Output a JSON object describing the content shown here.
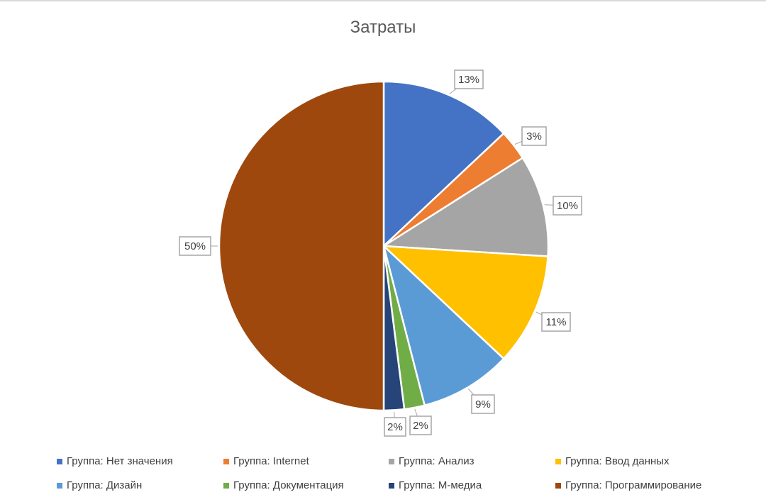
{
  "chart_data": {
    "type": "pie",
    "title": "Затраты",
    "categories": [
      "Группа: Нет значения",
      "Группа: Internet",
      "Группа: Анализ",
      "Группа: Ввод данных",
      "Группа: Дизайн",
      "Группа: Документация",
      "Группа: М-медиа",
      "Группа: Программирование"
    ],
    "values": [
      13,
      3,
      10,
      11,
      9,
      2,
      2,
      50
    ],
    "labels": [
      "13%",
      "3%",
      "10%",
      "11%",
      "9%",
      "2%",
      "2%",
      "50%"
    ],
    "colors": [
      "#4472C4",
      "#ED7D31",
      "#A5A5A5",
      "#FFC000",
      "#5B9BD5",
      "#70AD47",
      "#264478",
      "#9E480E"
    ],
    "legend_position": "bottom"
  }
}
